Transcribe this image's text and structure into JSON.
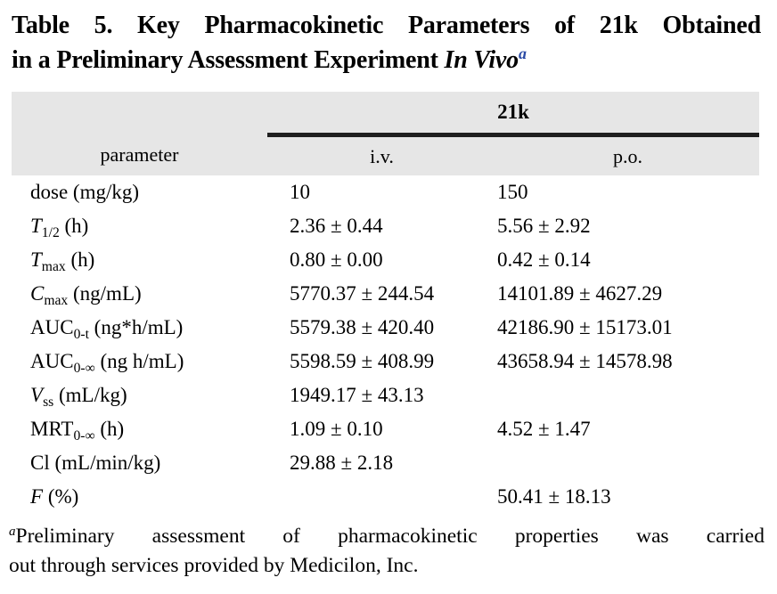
{
  "colors": {
    "page_bg": "#ffffff",
    "text": "#000000",
    "header_bg": "#e6e6e6",
    "rule": "#1f1f1f",
    "accent_blue": "#2a4aa5"
  },
  "title": {
    "lines": [
      [
        {
          "t": "Table 5. Key Pharmacokinetic Parameters of 21k Obtained"
        }
      ],
      [
        {
          "t": "in a Preliminary Assessment Experiment "
        },
        {
          "t": "In Vivo",
          "i": true
        },
        {
          "t": "a",
          "sup": true,
          "blue": true
        }
      ]
    ]
  },
  "table": {
    "group_header": "21k",
    "columns": [
      "parameter",
      "i.v.",
      "p.o."
    ],
    "rows": [
      {
        "name": [
          {
            "t": "dose (mg/kg)"
          }
        ],
        "iv": "10",
        "po": "150"
      },
      {
        "name": [
          {
            "t": "T",
            "i": true
          },
          {
            "t": "1/2",
            "sub": true
          },
          {
            "t": " (h)"
          }
        ],
        "iv": "2.36 ± 0.44",
        "po": "5.56 ± 2.92"
      },
      {
        "name": [
          {
            "t": "T",
            "i": true
          },
          {
            "t": "max",
            "sub": true
          },
          {
            "t": " (h)"
          }
        ],
        "iv": "0.80 ± 0.00",
        "po": "0.42 ± 0.14"
      },
      {
        "name": [
          {
            "t": "C",
            "i": true
          },
          {
            "t": "max",
            "sub": true
          },
          {
            "t": " (ng/mL)"
          }
        ],
        "iv": "5770.37 ± 244.54",
        "po": "14101.89 ± 4627.29"
      },
      {
        "name": [
          {
            "t": "AUC"
          },
          {
            "t": "0-t",
            "sub": true
          },
          {
            "t": " (ng*h/mL)"
          }
        ],
        "iv": "5579.38 ± 420.40",
        "po": "42186.90 ± 15173.01"
      },
      {
        "name": [
          {
            "t": "AUC"
          },
          {
            "t": "0-∞",
            "sub": true
          },
          {
            "t": " (ng h/mL)"
          }
        ],
        "iv": "5598.59 ± 408.99",
        "po": "43658.94 ± 14578.98"
      },
      {
        "name": [
          {
            "t": "V",
            "i": true
          },
          {
            "t": "ss",
            "sub": true
          },
          {
            "t": " (mL/kg)"
          }
        ],
        "iv": "1949.17 ± 43.13",
        "po": ""
      },
      {
        "name": [
          {
            "t": "MRT"
          },
          {
            "t": "0-∞",
            "sub": true
          },
          {
            "t": " (h)"
          }
        ],
        "iv": "1.09 ± 0.10",
        "po": "4.52 ± 1.47"
      },
      {
        "name": [
          {
            "t": "Cl"
          },
          {
            "t": " (mL/min/kg)"
          }
        ],
        "iv": "29.88 ± 2.18",
        "po": ""
      },
      {
        "name": [
          {
            "t": "F",
            "i": true
          },
          {
            "t": " (%)"
          }
        ],
        "iv": "",
        "po": "50.41 ± 18.13"
      }
    ]
  },
  "footnote": {
    "lines": [
      [
        {
          "t": "a",
          "sup": true
        },
        {
          "t": "Preliminary assessment of pharmacokinetic properties was carried"
        }
      ],
      [
        {
          "t": "out through services provided by Medicilon, Inc."
        }
      ]
    ]
  }
}
